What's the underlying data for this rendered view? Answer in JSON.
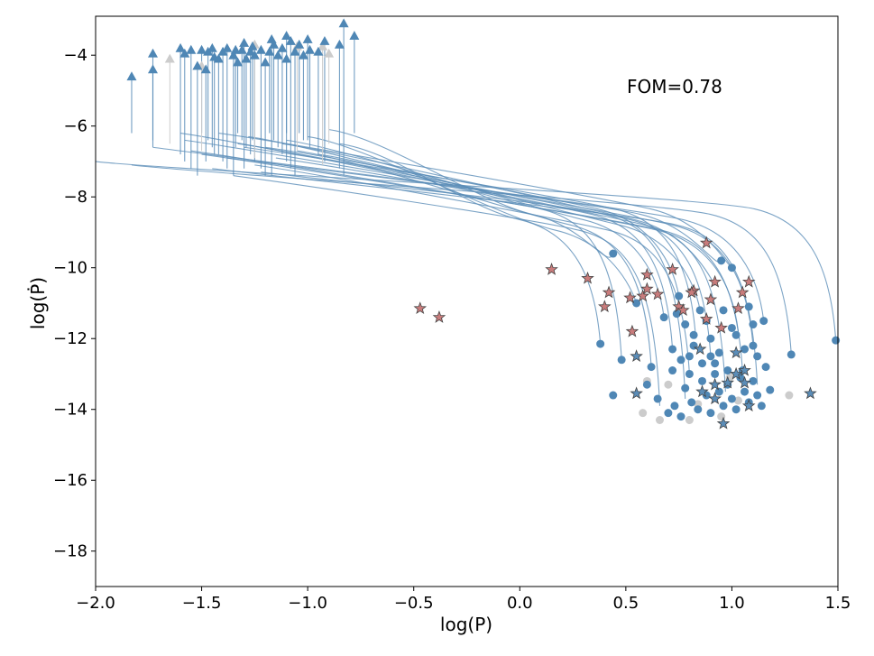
{
  "chart_data": {
    "type": "scatter",
    "title": "",
    "xlabel": "log(P)",
    "ylabel": "log(Ṗ)",
    "xlim": [
      -2.0,
      1.5
    ],
    "ylim": [
      -19.0,
      -2.9
    ],
    "xticks": [
      -2.0,
      -1.5,
      -1.0,
      -0.5,
      0.0,
      0.5,
      1.0,
      1.5
    ],
    "xtick_labels": [
      "−2.0",
      "−1.5",
      "−1.0",
      "−0.5",
      "0.0",
      "0.5",
      "1.0",
      "1.5"
    ],
    "yticks": [
      -4,
      -6,
      -8,
      -10,
      -12,
      -14,
      -16,
      -18
    ],
    "ytick_labels": [
      "−4",
      "−6",
      "−8",
      "−10",
      "−12",
      "−14",
      "−16",
      "−18"
    ],
    "annotation": "FOM=0.78",
    "colors": {
      "track": "#5b8db8",
      "circle": "#4f87b5",
      "triangle": "#4f87b5",
      "faded": "#cccccc",
      "red_star": "#c97c7c",
      "blue_star": "#5b8db8",
      "star_edge": "#444444"
    },
    "series": [
      {
        "name": "evolution_tracks",
        "marker": "line",
        "tracks": [
          {
            "start": [
              1.49,
              -12.05
            ],
            "end": [
              -2.0,
              -7.0
            ]
          },
          {
            "start": [
              1.28,
              -12.45
            ],
            "end": [
              -1.83,
              -7.1
            ]
          },
          {
            "start": [
              1.15,
              -11.5
            ],
            "end": [
              -1.73,
              -6.6
            ]
          },
          {
            "start": [
              1.1,
              -12.2
            ],
            "end": [
              -1.58,
              -6.4
            ]
          },
          {
            "start": [
              1.05,
              -12.9
            ],
            "end": [
              -1.5,
              -6.8
            ]
          },
          {
            "start": [
              1.0,
              -10.0
            ],
            "end": [
              -1.42,
              -6.2
            ]
          },
          {
            "start": [
              0.95,
              -9.8
            ],
            "end": [
              -1.38,
              -6.9
            ]
          },
          {
            "start": [
              0.9,
              -12.5
            ],
            "end": [
              -1.33,
              -6.5
            ]
          },
          {
            "start": [
              0.85,
              -11.2
            ],
            "end": [
              -1.28,
              -6.3
            ]
          },
          {
            "start": [
              0.8,
              -13.0
            ],
            "end": [
              -1.25,
              -7.1
            ]
          },
          {
            "start": [
              0.75,
              -10.8
            ],
            "end": [
              -1.2,
              -6.6
            ]
          },
          {
            "start": [
              0.72,
              -12.3
            ],
            "end": [
              -1.15,
              -6.9
            ]
          },
          {
            "start": [
              0.68,
              -11.4
            ],
            "end": [
              -1.1,
              -6.4
            ]
          },
          {
            "start": [
              0.62,
              -12.8
            ],
            "end": [
              -1.05,
              -6.7
            ]
          },
          {
            "start": [
              0.55,
              -11.0
            ],
            "end": [
              -1.0,
              -6.3
            ]
          },
          {
            "start": [
              0.48,
              -12.6
            ],
            "end": [
              -0.95,
              -6.8
            ]
          },
          {
            "start": [
              0.44,
              -9.6
            ],
            "end": [
              -0.9,
              -6.1
            ]
          },
          {
            "start": [
              0.38,
              -12.15
            ],
            "end": [
              -0.85,
              -6.5
            ]
          },
          {
            "start": [
              0.97,
              -13.5
            ],
            "end": [
              -1.6,
              -6.2
            ]
          },
          {
            "start": [
              1.03,
              -11.8
            ],
            "end": [
              -1.55,
              -6.7
            ]
          },
          {
            "start": [
              0.83,
              -12.0
            ],
            "end": [
              -1.3,
              -6.6
            ]
          },
          {
            "start": [
              0.78,
              -13.7
            ],
            "end": [
              -1.22,
              -7.3
            ]
          },
          {
            "start": [
              0.92,
              -10.5
            ],
            "end": [
              -1.12,
              -6.5
            ]
          },
          {
            "start": [
              1.12,
              -13.3
            ],
            "end": [
              -1.45,
              -7.2
            ]
          },
          {
            "start": [
              0.66,
              -13.9
            ],
            "end": [
              -1.35,
              -7.4
            ]
          }
        ]
      },
      {
        "name": "blue_circles",
        "marker": "circle",
        "color": "#4f87b5",
        "points": [
          [
            1.49,
            -12.05
          ],
          [
            1.28,
            -12.45
          ],
          [
            1.15,
            -11.5
          ],
          [
            1.1,
            -12.2
          ],
          [
            1.05,
            -12.9
          ],
          [
            1.0,
            -10.0
          ],
          [
            0.95,
            -9.8
          ],
          [
            0.9,
            -12.5
          ],
          [
            0.85,
            -11.2
          ],
          [
            0.8,
            -13.0
          ],
          [
            0.75,
            -10.8
          ],
          [
            0.72,
            -12.3
          ],
          [
            0.68,
            -11.4
          ],
          [
            0.62,
            -12.8
          ],
          [
            0.55,
            -11.0
          ],
          [
            0.48,
            -12.6
          ],
          [
            0.44,
            -9.6
          ],
          [
            0.38,
            -12.15
          ],
          [
            0.44,
            -13.6
          ],
          [
            0.6,
            -13.3
          ],
          [
            0.65,
            -13.7
          ],
          [
            0.7,
            -14.1
          ],
          [
            0.73,
            -13.9
          ],
          [
            0.76,
            -14.2
          ],
          [
            0.78,
            -13.4
          ],
          [
            0.81,
            -13.8
          ],
          [
            0.84,
            -14.0
          ],
          [
            0.86,
            -13.2
          ],
          [
            0.88,
            -13.6
          ],
          [
            0.9,
            -14.1
          ],
          [
            0.92,
            -13.0
          ],
          [
            0.94,
            -13.5
          ],
          [
            0.96,
            -13.9
          ],
          [
            0.98,
            -13.3
          ],
          [
            1.0,
            -13.7
          ],
          [
            1.02,
            -14.0
          ],
          [
            1.04,
            -13.1
          ],
          [
            1.06,
            -13.5
          ],
          [
            1.08,
            -13.8
          ],
          [
            1.1,
            -13.2
          ],
          [
            1.12,
            -13.6
          ],
          [
            1.14,
            -13.9
          ],
          [
            1.16,
            -12.8
          ],
          [
            1.18,
            -13.45
          ],
          [
            0.72,
            -12.9
          ],
          [
            0.76,
            -12.6
          ],
          [
            0.82,
            -12.2
          ],
          [
            0.86,
            -12.7
          ],
          [
            0.9,
            -12.0
          ],
          [
            0.94,
            -12.4
          ],
          [
            0.98,
            -12.9
          ],
          [
            1.02,
            -11.9
          ],
          [
            1.06,
            -12.3
          ],
          [
            1.1,
            -11.6
          ],
          [
            0.78,
            -11.6
          ],
          [
            0.82,
            -11.9
          ],
          [
            0.88,
            -11.5
          ],
          [
            0.96,
            -11.2
          ],
          [
            1.0,
            -11.7
          ],
          [
            1.08,
            -11.1
          ],
          [
            0.74,
            -11.3
          ],
          [
            0.8,
            -12.5
          ],
          [
            0.92,
            -12.7
          ],
          [
            1.12,
            -12.5
          ]
        ]
      },
      {
        "name": "blue_triangles",
        "marker": "triangle",
        "color": "#4f87b5",
        "points": [
          [
            -1.83,
            -4.6
          ],
          [
            -1.73,
            -4.4
          ],
          [
            -1.73,
            -3.95
          ],
          [
            -1.6,
            -3.8
          ],
          [
            -1.58,
            -3.95
          ],
          [
            -1.55,
            -3.85
          ],
          [
            -1.52,
            -4.3
          ],
          [
            -1.5,
            -3.85
          ],
          [
            -1.47,
            -3.9
          ],
          [
            -1.45,
            -3.8
          ],
          [
            -1.42,
            -4.1
          ],
          [
            -1.4,
            -3.9
          ],
          [
            -1.38,
            -3.8
          ],
          [
            -1.35,
            -4.0
          ],
          [
            -1.33,
            -4.2
          ],
          [
            -1.31,
            -3.85
          ],
          [
            -1.29,
            -4.1
          ],
          [
            -1.27,
            -3.9
          ],
          [
            -1.25,
            -4.0
          ],
          [
            -1.22,
            -3.85
          ],
          [
            -1.2,
            -4.2
          ],
          [
            -1.18,
            -3.9
          ],
          [
            -1.16,
            -3.7
          ],
          [
            -1.14,
            -4.0
          ],
          [
            -1.12,
            -3.8
          ],
          [
            -1.1,
            -4.1
          ],
          [
            -1.08,
            -3.6
          ],
          [
            -1.06,
            -3.9
          ],
          [
            -1.04,
            -3.7
          ],
          [
            -1.02,
            -4.0
          ],
          [
            -0.99,
            -3.85
          ],
          [
            -0.95,
            -3.9
          ],
          [
            -0.92,
            -3.6
          ],
          [
            -0.85,
            -3.7
          ],
          [
            -0.83,
            -3.1
          ],
          [
            -0.78,
            -3.45
          ],
          [
            -1.26,
            -3.75
          ],
          [
            -1.34,
            -3.85
          ],
          [
            -1.44,
            -4.05
          ],
          [
            -1.48,
            -4.4
          ],
          [
            -1.3,
            -3.65
          ],
          [
            -1.17,
            -3.55
          ],
          [
            -1.1,
            -3.45
          ],
          [
            -1.0,
            -3.55
          ]
        ]
      },
      {
        "name": "faded_gray",
        "marker": "mixed",
        "color": "#cccccc",
        "circles": [
          [
            0.6,
            -13.2
          ],
          [
            0.66,
            -14.3
          ],
          [
            0.58,
            -14.1
          ],
          [
            0.7,
            -13.3
          ],
          [
            0.8,
            -14.3
          ],
          [
            0.84,
            -13.85
          ],
          [
            1.27,
            -13.6
          ],
          [
            0.95,
            -14.2
          ],
          [
            0.99,
            -13.1
          ],
          [
            1.03,
            -13.75
          ]
        ],
        "triangles": [
          [
            -1.65,
            -4.1
          ],
          [
            -1.5,
            -4.3
          ],
          [
            -1.25,
            -3.7
          ],
          [
            -0.93,
            -3.75
          ],
          [
            -0.9,
            -3.95
          ],
          [
            -1.05,
            -3.75
          ]
        ]
      },
      {
        "name": "red_stars",
        "marker": "star",
        "color": "#c97c7c",
        "points": [
          [
            -0.47,
            -11.15
          ],
          [
            -0.38,
            -11.4
          ],
          [
            0.15,
            -10.05
          ],
          [
            0.32,
            -10.3
          ],
          [
            0.4,
            -11.1
          ],
          [
            0.42,
            -10.7
          ],
          [
            0.52,
            -10.85
          ],
          [
            0.53,
            -11.8
          ],
          [
            0.58,
            -10.8
          ],
          [
            0.6,
            -10.2
          ],
          [
            0.65,
            -10.75
          ],
          [
            0.6,
            -10.6
          ],
          [
            0.72,
            -10.05
          ],
          [
            0.75,
            -11.1
          ],
          [
            0.77,
            -11.2
          ],
          [
            0.82,
            -10.65
          ],
          [
            0.88,
            -9.3
          ],
          [
            0.88,
            -11.45
          ],
          [
            0.9,
            -10.9
          ],
          [
            0.92,
            -10.4
          ],
          [
            0.95,
            -11.7
          ],
          [
            1.03,
            -11.15
          ],
          [
            1.05,
            -10.7
          ],
          [
            1.08,
            -10.4
          ],
          [
            0.81,
            -10.7
          ]
        ]
      },
      {
        "name": "blue_stars",
        "marker": "star",
        "color": "#5b8db8",
        "points": [
          [
            0.55,
            -12.5
          ],
          [
            0.55,
            -13.55
          ],
          [
            0.85,
            -12.3
          ],
          [
            0.86,
            -13.5
          ],
          [
            0.92,
            -13.7
          ],
          [
            0.96,
            -14.4
          ],
          [
            0.98,
            -13.25
          ],
          [
            1.02,
            -12.4
          ],
          [
            1.02,
            -13.0
          ],
          [
            1.06,
            -12.9
          ],
          [
            1.06,
            -13.25
          ],
          [
            1.08,
            -13.9
          ],
          [
            1.37,
            -13.55
          ],
          [
            0.92,
            -13.3
          ]
        ]
      }
    ]
  }
}
